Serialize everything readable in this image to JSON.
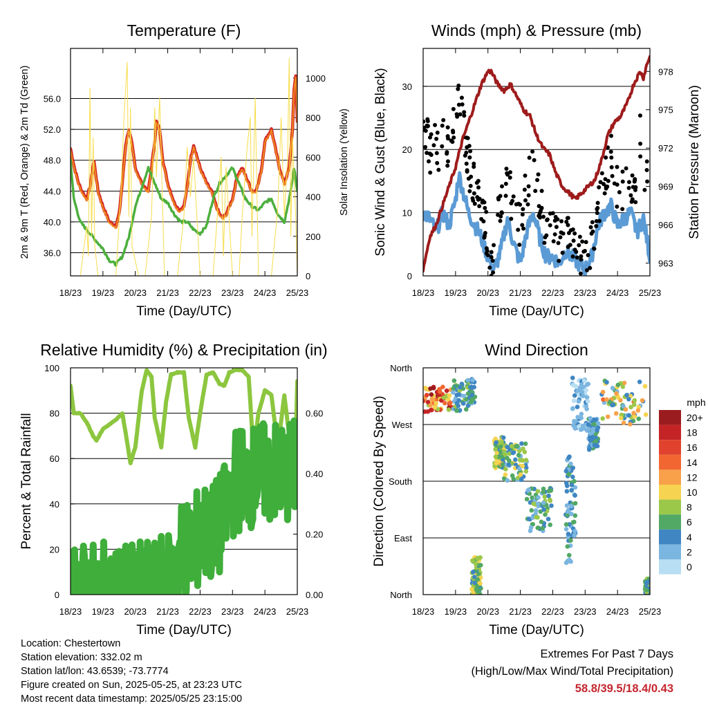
{
  "x_tick_labels": [
    "18/23",
    "19/23",
    "20/23",
    "21/23",
    "22/23",
    "23/23",
    "24/23",
    "25/23"
  ],
  "station_info": {
    "location": "Location: Chestertown",
    "elevation": "Station elevation: 332.02 m",
    "latlon": "Station lat/lon: 43.6539; -73.7774",
    "created": "Figure created on Sun, 2025-05-25, at 23:23 UTC",
    "recent": "Most recent data timestamp: 2025/05/25 23:15:00"
  },
  "extremes": {
    "heading": "Extremes For Past 7 Days",
    "subheading": "(High/Low/Max Wind/Total Precipitation)",
    "values": "58.8/39.5/18.4/0.43",
    "value_color": "#c4262e"
  },
  "colors": {
    "temp": "#d42a26",
    "temp9m": "#f08a1e",
    "dewpoint": "#4caf3d",
    "solar": "#f7dd4a",
    "wind": "#5b9bd5",
    "gust": "#000000",
    "pressure": "#9e1b1b",
    "rh": "#8cc63f",
    "rain": "#3fae3a"
  },
  "chart_data": [
    {
      "type": "line",
      "title": "Temperature (F)",
      "xlabel": "Time (Day/UTC)",
      "ylabel": "2m & 9m T (Red, Orange) & 2m Td (Green)",
      "ylabel_right": "Solar Insolation (Yellow)",
      "ylim": [
        33,
        62.5
      ],
      "ylim_right": [
        0,
        1150
      ],
      "yticks": [
        36.0,
        40.0,
        44.0,
        48.0,
        52.0,
        56.0
      ],
      "yticks_right": [
        0,
        200,
        400,
        600,
        800,
        1000
      ],
      "xlim": [
        0,
        7
      ],
      "grid": true,
      "series": [
        {
          "id": "temperature",
          "color": "#d42a26",
          "axis": "left",
          "x": [
            0,
            0.12,
            0.25,
            0.35,
            0.5,
            0.6,
            0.72,
            0.85,
            1.0,
            1.2,
            1.4,
            1.5,
            1.62,
            1.7,
            1.8,
            1.9,
            2.0,
            2.2,
            2.4,
            2.5,
            2.6,
            2.65,
            2.75,
            2.85,
            3.0,
            3.2,
            3.35,
            3.5,
            3.6,
            3.7,
            3.8,
            4.0,
            4.2,
            4.35,
            4.5,
            4.6,
            4.7,
            4.8,
            5.0,
            5.15,
            5.3,
            5.5,
            5.6,
            5.7,
            5.8,
            5.9,
            6.0,
            6.2,
            6.45,
            6.6,
            6.75,
            6.85,
            6.9,
            6.95,
            7.0
          ],
          "y": [
            49.5,
            47,
            45,
            44,
            43,
            44.5,
            48,
            44,
            42,
            40,
            39.5,
            41,
            46,
            50,
            52,
            50,
            47,
            45,
            44,
            47,
            50.5,
            53,
            52,
            48,
            45,
            42.5,
            41.5,
            42,
            44.5,
            48,
            50,
            47,
            45,
            44,
            42,
            41,
            40.5,
            41,
            43,
            46,
            47,
            45,
            44,
            44,
            45,
            47,
            50.5,
            52,
            47,
            45,
            47,
            52,
            57,
            59,
            53
          ]
        },
        {
          "id": "dewpoint",
          "color": "#4caf3d",
          "axis": "left",
          "x": [
            0,
            0.1,
            0.3,
            0.5,
            0.8,
            1.0,
            1.2,
            1.4,
            1.6,
            1.8,
            2.0,
            2.2,
            2.4,
            2.6,
            2.8,
            3.0,
            3.2,
            3.4,
            3.6,
            3.8,
            4.0,
            4.2,
            4.4,
            4.6,
            4.8,
            5.0,
            5.2,
            5.4,
            5.6,
            5.8,
            6.0,
            6.2,
            6.4,
            6.6,
            6.8,
            6.9,
            7.0
          ],
          "y": [
            48,
            43,
            40,
            39,
            37.5,
            36.5,
            35,
            34.5,
            35.5,
            38,
            42,
            44.5,
            47,
            45,
            43,
            42.5,
            41,
            40,
            40,
            39,
            38.5,
            39.5,
            43,
            45,
            46,
            47,
            45,
            43,
            42,
            41.5,
            42.5,
            43,
            41,
            40,
            44,
            47,
            44
          ]
        },
        {
          "id": "solar_insolation",
          "color": "#f7dd4a",
          "axis": "right",
          "width": 1,
          "x": [
            0,
            0.3,
            0.5,
            0.55,
            0.6,
            0.65,
            0.7,
            0.75,
            0.85,
            1.0,
            1.2,
            1.4,
            1.55,
            1.65,
            1.75,
            1.8,
            1.85,
            1.9,
            2.1,
            2.3,
            2.5,
            2.6,
            2.65,
            2.75,
            2.9,
            3.1,
            3.3,
            3.5,
            3.6,
            3.7,
            3.8,
            4.0,
            4.2,
            4.4,
            4.55,
            4.65,
            4.72,
            4.8,
            5.0,
            5.2,
            5.3,
            5.45,
            5.55,
            5.6,
            5.7,
            5.8,
            6.0,
            6.2,
            6.4,
            6.5,
            6.6,
            6.7,
            6.75,
            6.8,
            6.85,
            6.95,
            7.0
          ],
          "y": [
            0,
            0,
            250,
            100,
            950,
            200,
            700,
            150,
            0,
            0,
            0,
            0,
            400,
            800,
            1080,
            300,
            850,
            150,
            0,
            0,
            300,
            850,
            500,
            900,
            0,
            0,
            0,
            300,
            650,
            400,
            600,
            0,
            0,
            0,
            350,
            600,
            100,
            550,
            0,
            0,
            300,
            650,
            800,
            200,
            900,
            0,
            0,
            0,
            350,
            800,
            300,
            600,
            1100,
            200,
            700,
            300,
            0
          ]
        }
      ]
    },
    {
      "type": "line",
      "title": "Winds (mph) & Pressure (mb)",
      "xlabel": "Time (Day/UTC)",
      "ylabel": "Sonic Wind & Gust (Blue, Black)",
      "ylabel_right": "Station Pressure (Maroon)",
      "ylim": [
        0,
        36
      ],
      "ylim_right": [
        962,
        979.8
      ],
      "yticks": [
        0,
        10,
        20,
        30
      ],
      "yticks_right": [
        963,
        966,
        969,
        972,
        975,
        978
      ],
      "xlim": [
        0,
        7
      ],
      "grid": true,
      "series": [
        {
          "id": "sonic_wind",
          "color": "#5b9bd5",
          "axis": "left",
          "x": [
            0,
            0.2,
            0.4,
            0.6,
            0.8,
            1.0,
            1.1,
            1.2,
            1.4,
            1.6,
            1.8,
            2.0,
            2.2,
            2.4,
            2.6,
            2.8,
            3.0,
            3.2,
            3.4,
            3.6,
            3.8,
            4.0,
            4.2,
            4.4,
            4.6,
            4.8,
            5.0,
            5.2,
            5.4,
            5.6,
            5.8,
            6.0,
            6.2,
            6.4,
            6.6,
            6.8,
            7.0
          ],
          "y": [
            10,
            9,
            7,
            10,
            8,
            12,
            16,
            14,
            10,
            8,
            6,
            3,
            1,
            4,
            9,
            5,
            2,
            7,
            10,
            6,
            3,
            3,
            2,
            4,
            3,
            2,
            1,
            3,
            8,
            10,
            11,
            8,
            9,
            10,
            7,
            9,
            3
          ]
        },
        {
          "id": "gust",
          "color": "#000000",
          "axis": "left",
          "points": true,
          "x": [
            0,
            0.1,
            0.2,
            0.3,
            0.4,
            0.5,
            0.6,
            0.7,
            0.8,
            0.9,
            1.0,
            1.1,
            1.2,
            1.3,
            1.4,
            1.5,
            1.6,
            1.8,
            2.0,
            2.1,
            2.2,
            2.4,
            2.6,
            2.8,
            3.0,
            3.2,
            3.4,
            3.6,
            3.8,
            4.0,
            4.2,
            4.4,
            4.6,
            4.8,
            5.0,
            5.2,
            5.4,
            5.6,
            5.8,
            6.0,
            6.2,
            6.4,
            6.6,
            6.7,
            6.8,
            6.9,
            7.0
          ],
          "y": [
            24,
            22,
            20,
            18,
            23,
            17,
            25,
            19,
            21,
            24,
            23,
            30,
            26,
            22,
            18,
            15,
            14,
            10,
            6,
            3,
            4,
            12,
            16,
            10,
            8,
            14,
            18,
            12,
            6,
            7,
            5,
            8,
            6,
            4,
            3,
            5,
            10,
            16,
            19,
            14,
            13,
            15,
            13,
            22,
            15,
            17,
            5
          ]
        },
        {
          "id": "station_pressure",
          "color": "#9e1b1b",
          "axis": "right",
          "x": [
            0,
            0.2,
            0.4,
            0.6,
            0.8,
            1.0,
            1.2,
            1.4,
            1.6,
            1.8,
            2.0,
            2.1,
            2.3,
            2.5,
            2.7,
            2.9,
            3.1,
            3.3,
            3.5,
            3.7,
            3.9,
            4.1,
            4.3,
            4.5,
            4.7,
            4.9,
            5.1,
            5.3,
            5.5,
            5.7,
            5.9,
            6.1,
            6.3,
            6.5,
            6.7,
            6.8,
            6.9,
            7.0
          ],
          "y": [
            962.5,
            965,
            966,
            967.5,
            969,
            970.5,
            972.5,
            974,
            975.5,
            977,
            978,
            978,
            977,
            976.5,
            977,
            976,
            975,
            974.5,
            973,
            972,
            971.5,
            970,
            969,
            968.5,
            968,
            968.5,
            969,
            969.5,
            971,
            973,
            974,
            974.5,
            975.5,
            977,
            978,
            977.5,
            978.5,
            979.2
          ]
        }
      ]
    },
    {
      "type": "line",
      "title": "Relative Humidity (%) & Precipitation (in)",
      "xlabel": "Time (Day/UTC)",
      "ylabel": "Percent & Total Rainfall",
      "ylim": [
        0,
        100
      ],
      "ylim_right": [
        0,
        0.75
      ],
      "yticks": [
        0,
        20,
        40,
        60,
        80,
        100
      ],
      "yticks_right": [
        0.0,
        0.2,
        0.4,
        0.6
      ],
      "ytick_labels_right": [
        "0.00",
        "0.20",
        "0.40",
        "0.60"
      ],
      "xlim": [
        0,
        7
      ],
      "grid": true,
      "series": [
        {
          "id": "relative_humidity",
          "color": "#8cc63f",
          "axis": "left",
          "x": [
            0,
            0.1,
            0.3,
            0.5,
            0.7,
            0.8,
            1.0,
            1.2,
            1.4,
            1.6,
            1.75,
            1.85,
            2.0,
            2.2,
            2.35,
            2.5,
            2.6,
            2.8,
            2.95,
            3.1,
            3.3,
            3.5,
            3.65,
            3.85,
            4.0,
            4.2,
            4.4,
            4.6,
            4.75,
            4.9,
            5.1,
            5.3,
            5.5,
            5.65,
            5.8,
            6.0,
            6.2,
            6.4,
            6.6,
            6.75,
            6.85,
            6.95,
            7.0
          ],
          "y": [
            92,
            80,
            80,
            76,
            70,
            68,
            73,
            75,
            77,
            80,
            67,
            58,
            65,
            90,
            99,
            96,
            78,
            65,
            85,
            97,
            98,
            98,
            78,
            65,
            80,
            97,
            98,
            93,
            92,
            98,
            99,
            99,
            96,
            62,
            80,
            90,
            88,
            65,
            88,
            70,
            58,
            66,
            94
          ]
        },
        {
          "id": "total_precipitation",
          "color": "#3fae3a",
          "axis": "right",
          "x": [
            0,
            1.0,
            2.0,
            2.3,
            2.5,
            2.9,
            3.0,
            3.2,
            3.4,
            3.5,
            3.8,
            4.0,
            4.2,
            4.5,
            4.8,
            5.0,
            5.1,
            5.3,
            5.6,
            6.0,
            6.5,
            6.9,
            7.0
          ],
          "y": [
            0,
            0,
            0,
            0,
            0.01,
            0.02,
            0.03,
            0.08,
            0.15,
            0.15,
            0.15,
            0.2,
            0.2,
            0.21,
            0.27,
            0.35,
            0.38,
            0.39,
            0.39,
            0.4,
            0.4,
            0.41,
            0.43
          ]
        }
      ]
    },
    {
      "type": "scatter",
      "title": "Wind Direction",
      "xlabel": "Time (Day/UTC)",
      "ylabel": "Direction (Colored By Speed)",
      "ytick_labels": [
        "North",
        "East",
        "South",
        "West",
        "North"
      ],
      "ylim": [
        0,
        360
      ],
      "xlim": [
        0,
        7
      ],
      "grid": true,
      "legend": {
        "title": "mph",
        "placement": "right",
        "labels": [
          "20+",
          "18",
          "16",
          "14",
          "12",
          "10",
          "8",
          "6",
          "4",
          "2",
          "0"
        ],
        "colors": [
          "#9b1c1f",
          "#c42426",
          "#e0422e",
          "#f26631",
          "#f8a14a",
          "#f6d350",
          "#9cc84a",
          "#52a865",
          "#3f86c2",
          "#7bb6e0",
          "#b8def3"
        ]
      },
      "clusters": [
        {
          "x": [
            0.0,
            0.9
          ],
          "y": [
            290,
            330
          ],
          "speed": [
            8,
            20
          ]
        },
        {
          "x": [
            0.9,
            1.6
          ],
          "y": [
            290,
            345
          ],
          "speed": [
            2,
            8
          ]
        },
        {
          "x": [
            1.5,
            1.8
          ],
          "y": [
            0,
            60
          ],
          "speed": [
            4,
            10
          ]
        },
        {
          "x": [
            2.2,
            2.5
          ],
          "y": [
            200,
            250
          ],
          "speed": [
            4,
            12
          ]
        },
        {
          "x": [
            2.5,
            3.2
          ],
          "y": [
            180,
            240
          ],
          "speed": [
            2,
            10
          ]
        },
        {
          "x": [
            3.2,
            4.0
          ],
          "y": [
            100,
            170
          ],
          "speed": [
            2,
            8
          ]
        },
        {
          "x": [
            4.4,
            4.7
          ],
          "y": [
            50,
            220
          ],
          "speed": [
            2,
            6
          ]
        },
        {
          "x": [
            4.6,
            5.1
          ],
          "y": [
            260,
            345
          ],
          "speed": [
            0,
            4
          ]
        },
        {
          "x": [
            5.1,
            5.4
          ],
          "y": [
            230,
            280
          ],
          "speed": [
            2,
            6
          ]
        },
        {
          "x": [
            5.5,
            6.9
          ],
          "y": [
            270,
            340
          ],
          "speed": [
            2,
            14
          ]
        },
        {
          "x": [
            6.85,
            7.0
          ],
          "y": [
            0,
            25
          ],
          "speed": [
            4,
            8
          ]
        }
      ]
    }
  ]
}
